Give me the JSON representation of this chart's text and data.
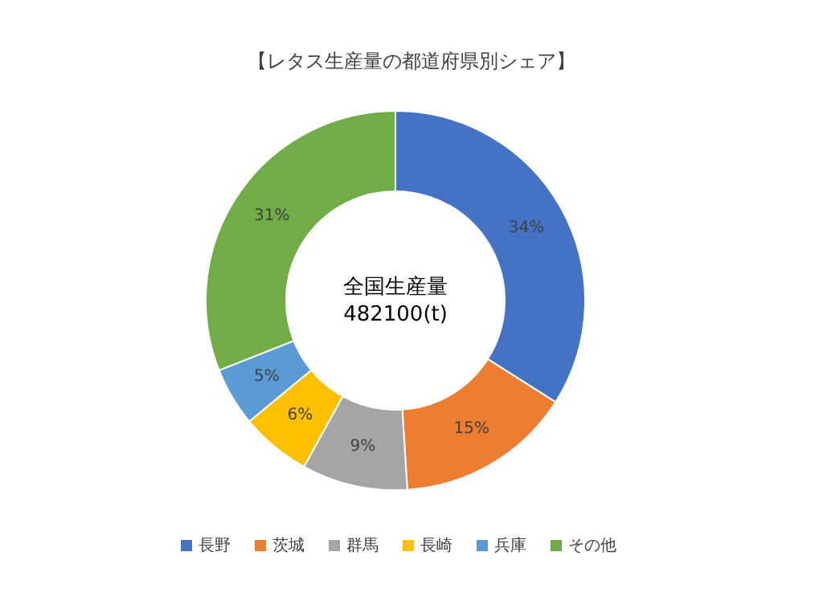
{
  "chart_data": {
    "type": "donut",
    "title": "【レタス生産量の都道府県別シェア】",
    "categories": [
      "長野",
      "茨城",
      "群馬",
      "長崎",
      "兵庫",
      "その他"
    ],
    "values": [
      34,
      15,
      9,
      6,
      5,
      31
    ],
    "colors": [
      "#4472c4",
      "#ed7d31",
      "#a5a5a5",
      "#ffc000",
      "#5b9bd5",
      "#70ad47"
    ],
    "value_labels": [
      "34%",
      "15%",
      "9%",
      "6%",
      "5%",
      "31%"
    ],
    "annotations": [
      "全国生産量",
      "482100(t)"
    ],
    "legend": "bottom"
  }
}
